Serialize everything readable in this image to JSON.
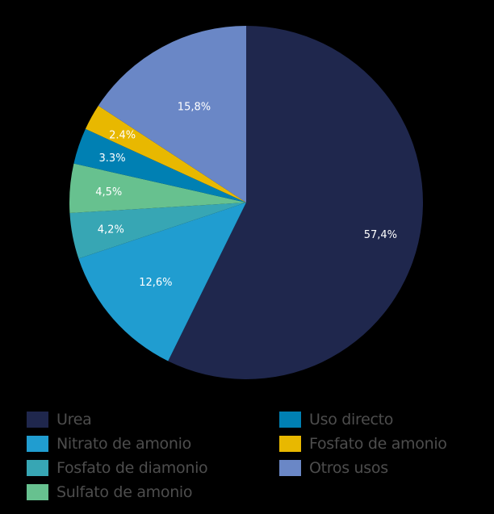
{
  "chart_data": {
    "type": "pie",
    "title": "",
    "start_angle_deg": 0,
    "direction": "clockwise",
    "slices": [
      {
        "name": "Urea",
        "value": 57.4,
        "label": "57,4%",
        "color": "#1f274d"
      },
      {
        "name": "Nitrato de amonio",
        "value": 12.6,
        "label": "12,6%",
        "color": "#209dd0"
      },
      {
        "name": "Fosfato de diamonio",
        "value": 4.2,
        "label": "4,2%",
        "color": "#37a6b4"
      },
      {
        "name": "Sulfato de amonio",
        "value": 4.5,
        "label": "4,5%",
        "color": "#67c18f"
      },
      {
        "name": "Uso directo",
        "value": 3.3,
        "label": "3.3%",
        "color": "#0080b3"
      },
      {
        "name": "Fosfato de amonio",
        "value": 2.4,
        "label": "2.4%",
        "color": "#e8b800"
      },
      {
        "name": "Otros usos",
        "value": 15.8,
        "label": "15,8%",
        "color": "#6a87c6"
      }
    ],
    "legend_position": "bottom"
  },
  "legend": {
    "items": [
      {
        "label": "Urea",
        "color": "#1f274d"
      },
      {
        "label": "Nitrato de amonio",
        "color": "#209dd0"
      },
      {
        "label": "Fosfato de diamonio",
        "color": "#37a6b4"
      },
      {
        "label": "Sulfato de amonio",
        "color": "#67c18f"
      },
      {
        "label": "Uso directo",
        "color": "#0080b3"
      },
      {
        "label": "Fosfato de amonio",
        "color": "#e8b800"
      },
      {
        "label": "Otros usos",
        "color": "#6a87c6"
      }
    ]
  }
}
